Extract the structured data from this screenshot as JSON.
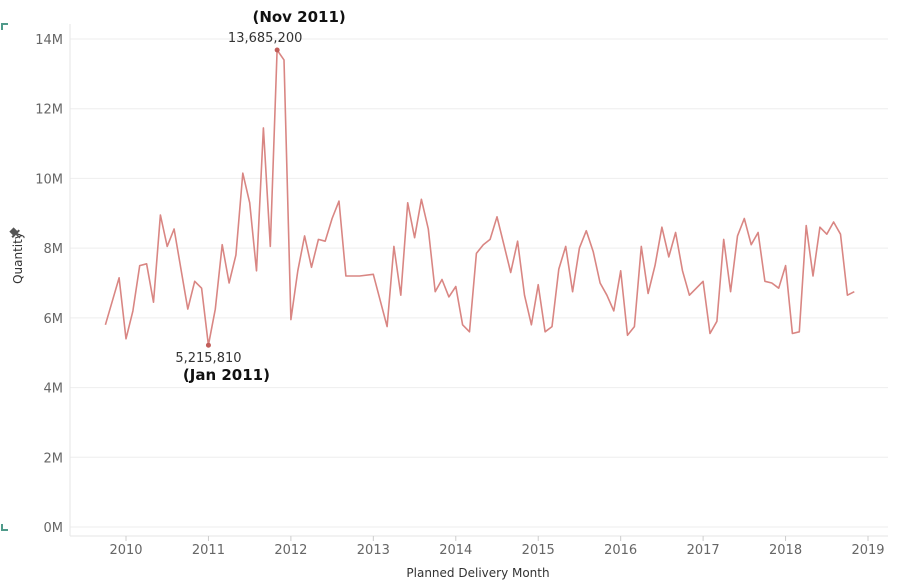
{
  "chart_data": {
    "type": "line",
    "title": "",
    "xlabel": "Planned Delivery Month",
    "ylabel": "Quantity",
    "axis_icon": "pin-icon",
    "line_color": "#d98683",
    "grid": true,
    "legend": "none",
    "ylim": [
      0,
      14600000
    ],
    "y_ticks": [
      {
        "value": 0,
        "label": "0M"
      },
      {
        "value": 2000000,
        "label": "2M"
      },
      {
        "value": 4000000,
        "label": "4M"
      },
      {
        "value": 6000000,
        "label": "6M"
      },
      {
        "value": 8000000,
        "label": "8M"
      },
      {
        "value": 10000000,
        "label": "10M"
      },
      {
        "value": 12000000,
        "label": "12M"
      },
      {
        "value": 14000000,
        "label": "14M"
      }
    ],
    "xlim": [
      "2009-03",
      "2019-04"
    ],
    "x_ticks": [
      {
        "value": "2010-01",
        "label": "2010"
      },
      {
        "value": "2011-01",
        "label": "2011"
      },
      {
        "value": "2012-01",
        "label": "2012"
      },
      {
        "value": "2013-01",
        "label": "2013"
      },
      {
        "value": "2014-01",
        "label": "2014"
      },
      {
        "value": "2015-01",
        "label": "2015"
      },
      {
        "value": "2016-01",
        "label": "2016"
      },
      {
        "value": "2017-01",
        "label": "2017"
      },
      {
        "value": "2018-01",
        "label": "2018"
      },
      {
        "value": "2019-01",
        "label": "2019"
      }
    ],
    "series": [
      {
        "points": [
          [
            "2009-10",
            5800000
          ],
          [
            "2009-12",
            7150000
          ],
          [
            "2010-01",
            5400000
          ],
          [
            "2010-02",
            6200000
          ],
          [
            "2010-03",
            7500000
          ],
          [
            "2010-04",
            7550000
          ],
          [
            "2010-05",
            6450000
          ],
          [
            "2010-06",
            8950000
          ],
          [
            "2010-07",
            8050000
          ],
          [
            "2010-08",
            8550000
          ],
          [
            "2010-10",
            6250000
          ],
          [
            "2010-11",
            7050000
          ],
          [
            "2010-12",
            6850000
          ],
          [
            "2011-01",
            5215810
          ],
          [
            "2011-02",
            6250000
          ],
          [
            "2011-03",
            8100000
          ],
          [
            "2011-04",
            7000000
          ],
          [
            "2011-05",
            7800000
          ],
          [
            "2011-06",
            10150000
          ],
          [
            "2011-07",
            9300000
          ],
          [
            "2011-08",
            7350000
          ],
          [
            "2011-09",
            11450000
          ],
          [
            "2011-10",
            8050000
          ],
          [
            "2011-11",
            13685200
          ],
          [
            "2011-12",
            13400000
          ],
          [
            "2012-01",
            5950000
          ],
          [
            "2012-02",
            7350000
          ],
          [
            "2012-03",
            8350000
          ],
          [
            "2012-04",
            7450000
          ],
          [
            "2012-05",
            8250000
          ],
          [
            "2012-06",
            8200000
          ],
          [
            "2012-07",
            8850000
          ],
          [
            "2012-08",
            9350000
          ],
          [
            "2012-09",
            7200000
          ],
          [
            "2012-11",
            7200000
          ],
          [
            "2013-01",
            7250000
          ],
          [
            "2013-03",
            5750000
          ],
          [
            "2013-04",
            8050000
          ],
          [
            "2013-05",
            6650000
          ],
          [
            "2013-06",
            9300000
          ],
          [
            "2013-07",
            8300000
          ],
          [
            "2013-08",
            9400000
          ],
          [
            "2013-09",
            8550000
          ],
          [
            "2013-10",
            6750000
          ],
          [
            "2013-11",
            7100000
          ],
          [
            "2013-12",
            6600000
          ],
          [
            "2014-01",
            6900000
          ],
          [
            "2014-02",
            5800000
          ],
          [
            "2014-03",
            5600000
          ],
          [
            "2014-04",
            7850000
          ],
          [
            "2014-05",
            8100000
          ],
          [
            "2014-06",
            8250000
          ],
          [
            "2014-07",
            8900000
          ],
          [
            "2014-08",
            8100000
          ],
          [
            "2014-09",
            7300000
          ],
          [
            "2014-10",
            8200000
          ],
          [
            "2014-11",
            6650000
          ],
          [
            "2014-12",
            5800000
          ],
          [
            "2015-01",
            6950000
          ],
          [
            "2015-02",
            5600000
          ],
          [
            "2015-03",
            5750000
          ],
          [
            "2015-04",
            7400000
          ],
          [
            "2015-05",
            8050000
          ],
          [
            "2015-06",
            6750000
          ],
          [
            "2015-07",
            8000000
          ],
          [
            "2015-08",
            8500000
          ],
          [
            "2015-09",
            7900000
          ],
          [
            "2015-10",
            7000000
          ],
          [
            "2015-11",
            6650000
          ],
          [
            "2015-12",
            6200000
          ],
          [
            "2016-01",
            7350000
          ],
          [
            "2016-02",
            5500000
          ],
          [
            "2016-03",
            5750000
          ],
          [
            "2016-04",
            8050000
          ],
          [
            "2016-05",
            6700000
          ],
          [
            "2016-06",
            7500000
          ],
          [
            "2016-07",
            8600000
          ],
          [
            "2016-08",
            7750000
          ],
          [
            "2016-09",
            8450000
          ],
          [
            "2016-10",
            7350000
          ],
          [
            "2016-11",
            6650000
          ],
          [
            "2017-01",
            7050000
          ],
          [
            "2017-02",
            5550000
          ],
          [
            "2017-03",
            5900000
          ],
          [
            "2017-04",
            8250000
          ],
          [
            "2017-05",
            6750000
          ],
          [
            "2017-06",
            8350000
          ],
          [
            "2017-07",
            8850000
          ],
          [
            "2017-08",
            8100000
          ],
          [
            "2017-09",
            8450000
          ],
          [
            "2017-10",
            7050000
          ],
          [
            "2017-11",
            7000000
          ],
          [
            "2017-12",
            6850000
          ],
          [
            "2018-01",
            7500000
          ],
          [
            "2018-02",
            5550000
          ],
          [
            "2018-03",
            5600000
          ],
          [
            "2018-04",
            8650000
          ],
          [
            "2018-05",
            7200000
          ],
          [
            "2018-06",
            8600000
          ],
          [
            "2018-07",
            8400000
          ],
          [
            "2018-08",
            8750000
          ],
          [
            "2018-09",
            8400000
          ],
          [
            "2018-10",
            6650000
          ],
          [
            "2018-11",
            6750000
          ]
        ]
      }
    ],
    "annotations": [
      {
        "x": "2011-11",
        "y": 13685200,
        "value_text": "13,685,200",
        "callout": "(Nov 2011)",
        "position": "above"
      },
      {
        "x": "2011-01",
        "y": 5215810,
        "value_text": "5,215,810",
        "callout": "(Jan 2011)",
        "position": "below"
      }
    ]
  }
}
